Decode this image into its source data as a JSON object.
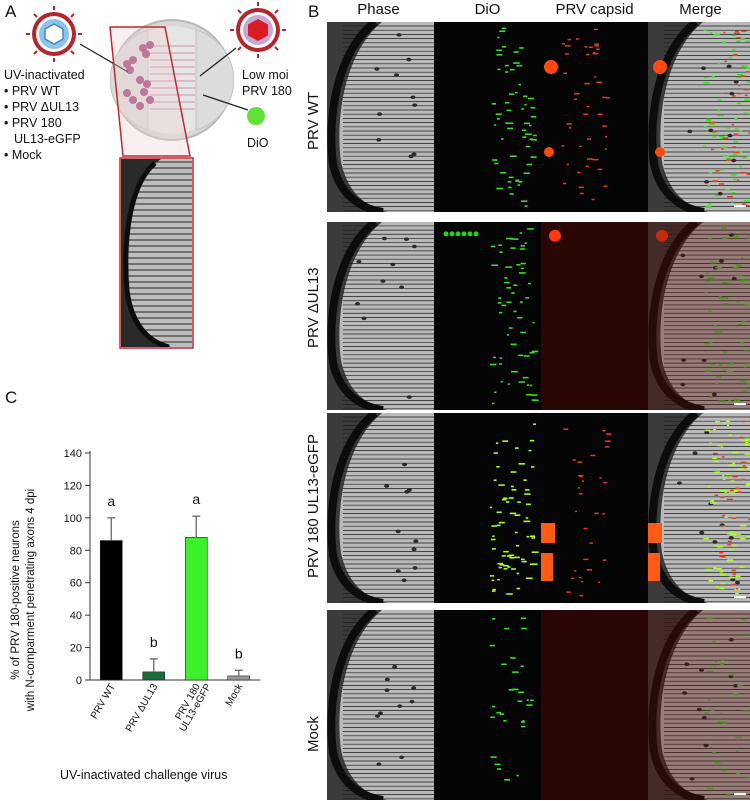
{
  "panelA": {
    "letter": "A",
    "uv_title": "UV-inactivated",
    "uv_items": [
      "• PRV WT",
      "• PRV ΔUL13",
      "• PRV 180",
      "UL13-eGFP",
      "• Mock"
    ],
    "low_moi_line1": "Low moi",
    "low_moi_line2": "PRV 180",
    "dio_label": "DiO",
    "colors": {
      "virus_outer": "#b3262b",
      "virus_inner_blue": "#8fc4ea",
      "virus_red_core": "#d81e22",
      "dio_green": "#62e03a",
      "zoom_box": "#c0282d"
    }
  },
  "panelB": {
    "letter": "B",
    "columns": [
      "Phase",
      "DiO",
      "PRV capsid",
      "Merge"
    ],
    "rows": [
      "PRV WT",
      "PRV ΔUL13",
      "PRV 180 UL13-eGFP",
      "Mock"
    ]
  },
  "panelC": {
    "letter": "C",
    "ylabel_line1": "% of PRV 180-positive neurons",
    "ylabel_line2": "with N-comparment penetrating axons 4 dpi",
    "xlabel": "UV-inactivated challenge virus",
    "significance": [
      "a",
      "b",
      "a",
      "b"
    ]
  },
  "chart_data": {
    "type": "bar",
    "categories": [
      "PRV WT",
      "PRV ΔUL13",
      "PRV 180 UL13-eGFP",
      "Mock"
    ],
    "category_tick_labels": [
      [
        "PRV WT"
      ],
      [
        "PRV ΔUL13"
      ],
      [
        "PRV 180",
        "UL13-eGFP"
      ],
      [
        "Mock"
      ]
    ],
    "values": [
      86,
      5,
      88,
      2.5
    ],
    "errors": [
      14,
      8,
      13,
      3.5
    ],
    "colors": [
      "#000000",
      "#1a6b3c",
      "#3cf02c",
      "#9a9a9a"
    ],
    "ylim": [
      0,
      140
    ],
    "yticks": [
      0,
      20,
      40,
      60,
      80,
      100,
      120,
      140
    ],
    "ylabel": "% of PRV 180-positive neurons with N-comparment penetrating axons 4 dpi",
    "xlabel": "UV-inactivated challenge virus"
  }
}
